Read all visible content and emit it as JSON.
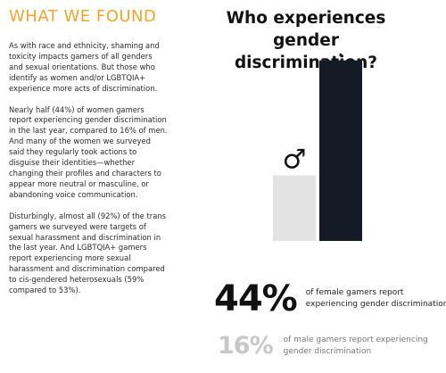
{
  "heading": "WHAT WE FOUND",
  "paragraphs": [
    "As with race and ethnicity, shaming and toxicity impacts gamers of all genders and sexual orientations. But those who identify as women and/or LGBTQIA+ experience more acts of discrimination.",
    "Nearly half (44%) of women gamers report experiencing gender discrimination in the last year, compared to 16% of men. And many of the women we surveyed said they regularly took actions to disguise their identities—whether changing their profiles and characters to appear more neutral or masculine, or abandoning voice communication.",
    "Disturbingly, almost all (92%) of the trans gamers we surveyed were targets of sexual harassment and discrimination in the last year. And LGBTQIA+ gamers report experiencing more sexual harassment and discrimination compared to cis-gendered heterosexuals (59% compared to 53%)."
  ],
  "chart_data": {
    "type": "bar",
    "title": "Who experiences gender discrimination?",
    "categories": [
      "♂",
      "♀"
    ],
    "values": [
      16,
      44
    ],
    "colors": [
      "#e3e3e3",
      "#151b26"
    ],
    "icons": [
      "male-symbol-icon",
      "female-symbol-icon"
    ],
    "ylim": [
      0,
      50
    ],
    "grid": false,
    "annotations": [
      {
        "value": "44%",
        "text": "of female gamers report experiencing gender discrimination"
      },
      {
        "value": "16%",
        "text": "of male gamers report experiencing gender discrimination"
      }
    ]
  }
}
